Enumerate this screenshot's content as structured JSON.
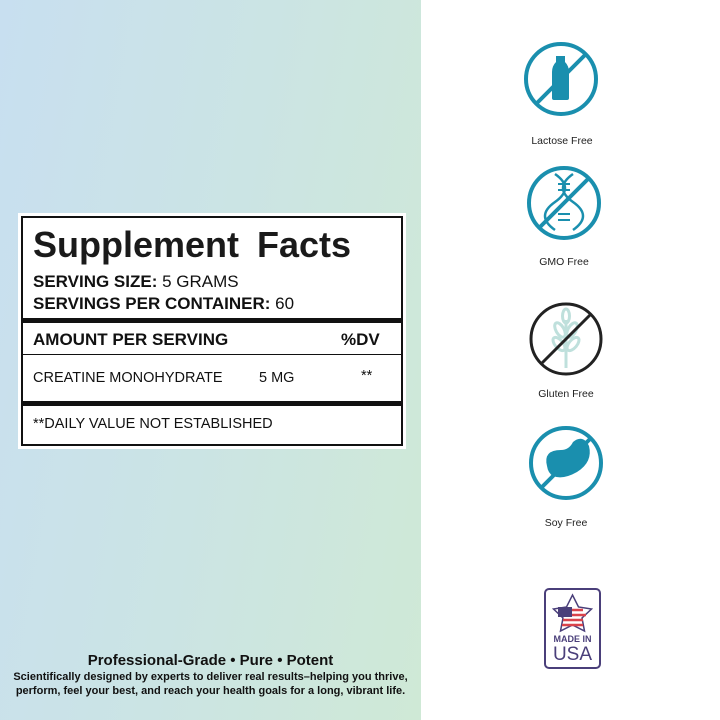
{
  "facts": {
    "title": "Supplement Facts",
    "serving_size_label": "SERVING SIZE:",
    "serving_size": "5 GRAMS",
    "servings_label": "SERVINGS PER CONTAINER:",
    "servings": "60",
    "amount_header": "AMOUNT PER SERVING",
    "dv_header": "%DV",
    "ingredients": [
      {
        "name": "CREATINE MONOHYDRATE",
        "amount": "5 MG",
        "dv": "**"
      }
    ],
    "footnote": "**DAILY VALUE NOT ESTABLISHED"
  },
  "tagline": "Professional-Grade • Pure • Potent",
  "description": "Scientifically designed by experts to deliver real results–helping you thrive, perform, feel your best, and reach your health goals for a long, vibrant life.",
  "badges": [
    {
      "label": "Lactose Free",
      "icon": "no-bottle-icon",
      "color": "#1a8fae"
    },
    {
      "label": "GMO Free",
      "icon": "no-dna-icon",
      "color": "#1a8fae"
    },
    {
      "label": "Gluten Free",
      "icon": "no-wheat-icon",
      "color": "#222222"
    },
    {
      "label": "Soy Free",
      "icon": "no-bean-icon",
      "color": "#1a8fae"
    }
  ],
  "made_in": {
    "line1": "MADE IN",
    "line2": "USA",
    "color": "#4a3f7a"
  }
}
